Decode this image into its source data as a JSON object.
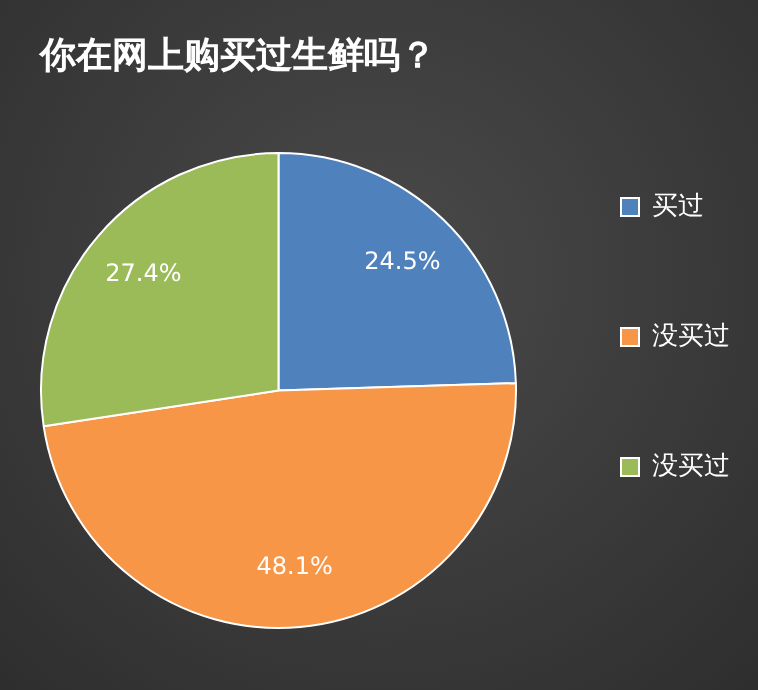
{
  "chart_data": {
    "type": "pie",
    "title": "你在网上购买过生鲜吗？",
    "categories": [
      "买过",
      "没买过",
      "没买过"
    ],
    "values": [
      24.5,
      48.1,
      27.4
    ],
    "colors": [
      "#4f81bd",
      "#f79646",
      "#9bbb59"
    ],
    "value_labels": [
      "24.5%",
      "48.1%",
      "27.4%"
    ],
    "legend": "right"
  }
}
